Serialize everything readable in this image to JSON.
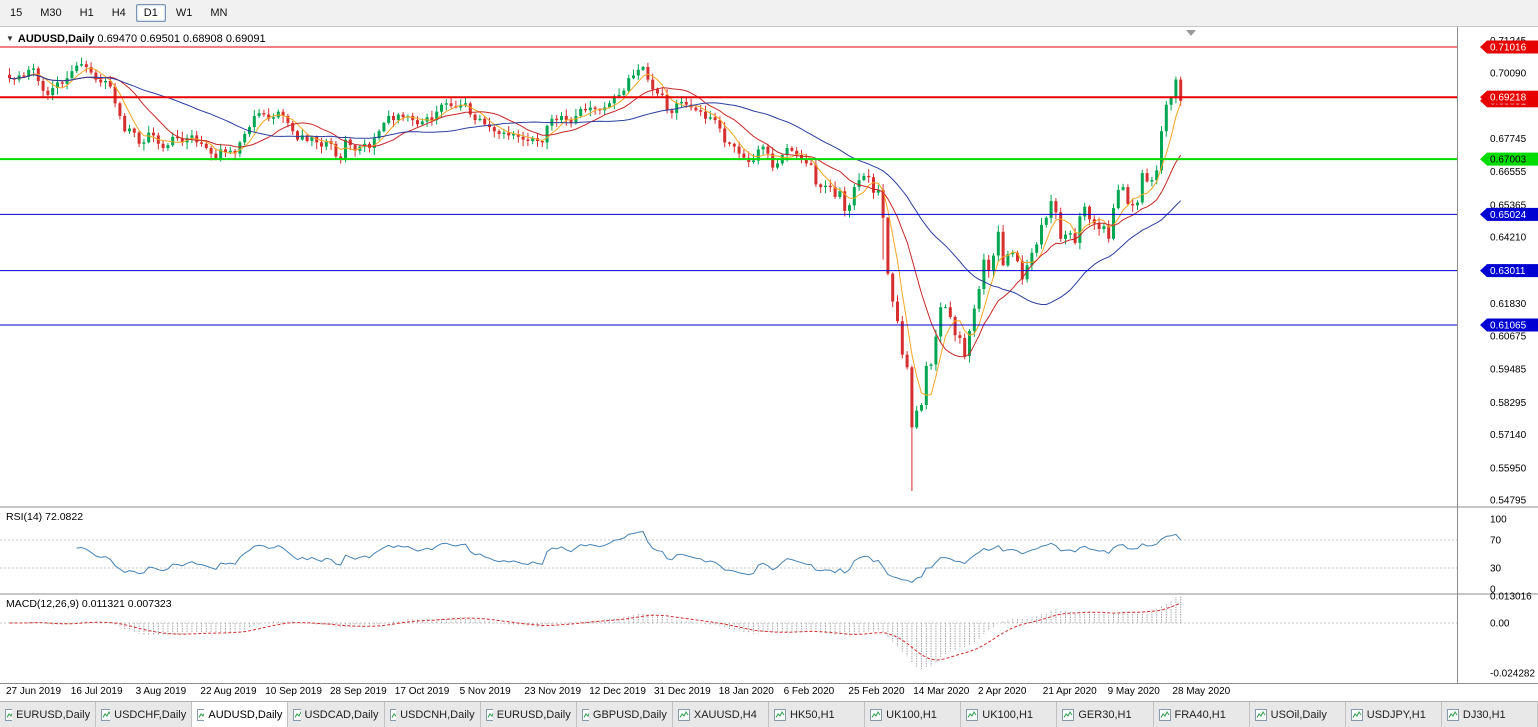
{
  "toolbar": {
    "timeframes": [
      "15",
      "M30",
      "H1",
      "H4",
      "D1",
      "W1",
      "MN"
    ],
    "active_timeframe": "D1"
  },
  "chart_header": {
    "symbol": "AUDUSD,Daily",
    "ohlc": "0.69470 0.69501 0.68908 0.69091",
    "dropdown_icon": "▼"
  },
  "price_axis": {
    "labels": [
      "0.71245",
      "0.70090",
      "0.67745",
      "0.66555",
      "0.65365",
      "0.64210",
      "0.61830",
      "0.60675",
      "0.59485",
      "0.58295",
      "0.57140",
      "0.55950",
      "0.54795"
    ]
  },
  "levels": [
    {
      "value": "0.71016",
      "price": 0.71016,
      "color": "#E60000",
      "text": "#ffffff",
      "width": 1
    },
    {
      "value": "0.69218",
      "price": 0.69218,
      "color": "#E60000",
      "text": "#ffffff",
      "width": 2
    },
    {
      "value": "0.67003",
      "price": 0.67003,
      "color": "#00DC00",
      "text": "#000000",
      "width": 2
    },
    {
      "value": "0.65024",
      "price": 0.65024,
      "color": "#0000D2",
      "text": "#ffffff",
      "width": 1
    },
    {
      "value": "0.63011",
      "price": 0.63011,
      "color": "#0000D2",
      "text": "#ffffff",
      "width": 1
    },
    {
      "value": "0.61065",
      "price": 0.61065,
      "color": "#0000D2",
      "text": "#ffffff",
      "width": 1
    }
  ],
  "current_price_tag": {
    "value": "0.69091",
    "price": 0.69091,
    "color": "#E60000"
  },
  "rsi": {
    "label": "RSI(14)",
    "value": "72.0822",
    "axis": [
      "100",
      "70",
      "30",
      "0"
    ],
    "line_color": "#4682B4"
  },
  "macd": {
    "label": "MACD(12,26,9)",
    "values": "0.011321 0.007323",
    "axis_top": "0.013016",
    "axis_zero": "0.00",
    "axis_bottom": "-0.024282",
    "bar_color": "#A9A9A9",
    "signal_color": "#D32F2F"
  },
  "colors": {
    "up": "#00A651",
    "down": "#D62F2F",
    "bg": "#FFFFFF",
    "chrome": "#F1F1F1"
  },
  "chart_data": {
    "type": "candlestick",
    "symbol": "AUDUSD",
    "timeframe": "Daily",
    "title": "AUDUSD,Daily",
    "ohlc_display": {
      "open": "0.69470",
      "high": "0.69501",
      "low": "0.68908",
      "close": "0.69091"
    },
    "price_range": {
      "top": 0.71732,
      "bottom": 0.54584
    },
    "date_labels": [
      "27 Jun 2019",
      "16 Jul 2019",
      "3 Aug 2019",
      "22 Aug 2019",
      "10 Sep 2019",
      "28 Sep 2019",
      "17 Oct 2019",
      "5 Nov 2019",
      "23 Nov 2019",
      "12 Dec 2019",
      "31 Dec 2019",
      "18 Jan 2020",
      "6 Feb 2020",
      "25 Feb 2020",
      "14 Mar 2020",
      "2 Apr 2020",
      "21 Apr 2020",
      "9 May 2020",
      "28 May 2020"
    ],
    "ma": [
      {
        "name": "fast",
        "period": 5,
        "color": "#F5A623"
      },
      {
        "name": "mid",
        "period": 13,
        "color": "#C62828"
      },
      {
        "name": "slow",
        "period": 34,
        "color": "#2B3F9E"
      }
    ],
    "closes": [
      0.699,
      0.6985,
      0.7,
      0.6995,
      0.702,
      0.7025,
      0.698,
      0.6945,
      0.693,
      0.6955,
      0.6975,
      0.697,
      0.699,
      0.7015,
      0.7035,
      0.704,
      0.703,
      0.701,
      0.6985,
      0.6975,
      0.698,
      0.696,
      0.69,
      0.6855,
      0.68,
      0.681,
      0.6795,
      0.6755,
      0.676,
      0.6795,
      0.6785,
      0.6755,
      0.674,
      0.675,
      0.678,
      0.6775,
      0.676,
      0.6775,
      0.6785,
      0.676,
      0.6755,
      0.674,
      0.672,
      0.67,
      0.6735,
      0.6725,
      0.673,
      0.672,
      0.676,
      0.679,
      0.6815,
      0.6855,
      0.6865,
      0.686,
      0.6845,
      0.685,
      0.687,
      0.6855,
      0.683,
      0.68,
      0.677,
      0.6785,
      0.6765,
      0.678,
      0.676,
      0.6745,
      0.6765,
      0.6755,
      0.671,
      0.67,
      0.677,
      0.675,
      0.673,
      0.6745,
      0.6755,
      0.674,
      0.6775,
      0.68,
      0.683,
      0.6855,
      0.684,
      0.686,
      0.685,
      0.6855,
      0.684,
      0.6825,
      0.6835,
      0.685,
      0.684,
      0.687,
      0.6895,
      0.69,
      0.689,
      0.6885,
      0.6895,
      0.69,
      0.686,
      0.684,
      0.6845,
      0.6825,
      0.6815,
      0.68,
      0.679,
      0.6795,
      0.6785,
      0.679,
      0.678,
      0.677,
      0.6765,
      0.6775,
      0.6765,
      0.676,
      0.682,
      0.6845,
      0.684,
      0.6855,
      0.684,
      0.683,
      0.6855,
      0.688,
      0.6875,
      0.6885,
      0.688,
      0.6875,
      0.6885,
      0.69,
      0.6925,
      0.693,
      0.6945,
      0.699,
      0.7,
      0.702,
      0.703,
      0.6985,
      0.695,
      0.6935,
      0.693,
      0.6875,
      0.6865,
      0.69,
      0.6905,
      0.6895,
      0.6885,
      0.6875,
      0.687,
      0.6845,
      0.685,
      0.684,
      0.681,
      0.676,
      0.6755,
      0.6745,
      0.672,
      0.6705,
      0.669,
      0.6695,
      0.6735,
      0.6745,
      0.672,
      0.667,
      0.6685,
      0.6715,
      0.674,
      0.673,
      0.6715,
      0.67,
      0.6685,
      0.668,
      0.661,
      0.66,
      0.6605,
      0.66,
      0.6565,
      0.6585,
      0.6515,
      0.6535,
      0.66,
      0.6625,
      0.664,
      0.6635,
      0.658,
      0.659,
      0.649,
      0.629,
      0.619,
      0.612,
      0.6,
      0.5955,
      0.574,
      0.58,
      0.582,
      0.596,
      0.5965,
      0.6065,
      0.617,
      0.617,
      0.6135,
      0.607,
      0.606,
      0.5995,
      0.6085,
      0.6165,
      0.6235,
      0.634,
      0.63,
      0.6355,
      0.644,
      0.632,
      0.636,
      0.6365,
      0.6335,
      0.627,
      0.632,
      0.6365,
      0.6395,
      0.6465,
      0.649,
      0.655,
      0.651,
      0.6415,
      0.643,
      0.6435,
      0.64,
      0.6495,
      0.653,
      0.6485,
      0.647,
      0.645,
      0.646,
      0.6415,
      0.6525,
      0.659,
      0.66,
      0.654,
      0.6535,
      0.6545,
      0.665,
      0.662,
      0.6625,
      0.666,
      0.68,
      0.6895,
      0.692,
      0.6985,
      0.6909
    ],
    "special_lows": {
      "182": 0.634,
      "188": 0.5512,
      "244": 0.6891
    },
    "indicators": {
      "rsi_label": "RSI(14) 72.0822",
      "macd_label": "MACD(12,26,9) 0.011321 0.007323"
    }
  },
  "tabs": {
    "items": [
      "EURUSD,Daily",
      "USDCHF,Daily",
      "AUDUSD,Daily",
      "USDCAD,Daily",
      "USDCNH,Daily",
      "EURUSD,Daily",
      "GBPUSD,Daily",
      "XAUUSD,H4",
      "HK50,H1",
      "UK100,H1",
      "UK100,H1",
      "GER30,H1",
      "FRA40,H1",
      "USOil,Daily",
      "USDJPY,H1",
      "DJ30,H1"
    ],
    "active_index": 2
  }
}
